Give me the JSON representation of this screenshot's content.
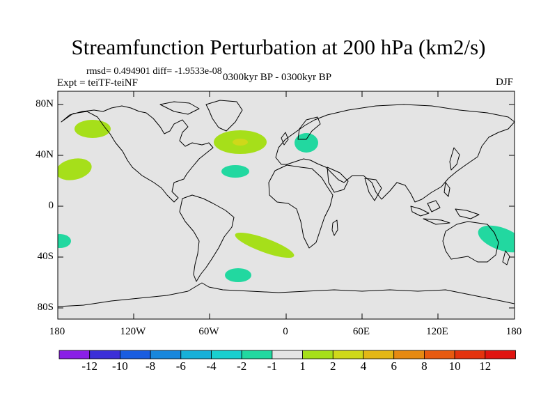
{
  "title": "Streamfunction Perturbation at 200 hPa (km2/s)",
  "stats_line": "rmsd= 0.494901 diff= -1.9533e-08",
  "experiment": "Expt = teiTF-teiNF",
  "period": "0300kyr BP - 0300kyr BP",
  "season": "DJF",
  "lat_labels": [
    "80N",
    "40N",
    "0",
    "40S",
    "80S"
  ],
  "lon_labels": [
    "180",
    "120W",
    "60W",
    "0",
    "60E",
    "120E",
    "180"
  ],
  "colorbar": {
    "labels": [
      "-12",
      "-10",
      "-8",
      "-6",
      "-4",
      "-2",
      "-1",
      "1",
      "2",
      "4",
      "6",
      "8",
      "10",
      "12"
    ],
    "colors": [
      "#8a1fe6",
      "#3b2fd8",
      "#1a5de0",
      "#1887dc",
      "#17b0d8",
      "#19cfcf",
      "#22d8a0",
      "#e4e4e4",
      "#a6df1a",
      "#cfd81a",
      "#e3b716",
      "#e68a12",
      "#e85a10",
      "#e4330e",
      "#e01410"
    ]
  },
  "colors": {
    "background": "#e4e4e4",
    "coast": "#000000",
    "pos1": "#a6df1a",
    "pos2": "#cfd81a",
    "neg1": "#22d8a0"
  }
}
